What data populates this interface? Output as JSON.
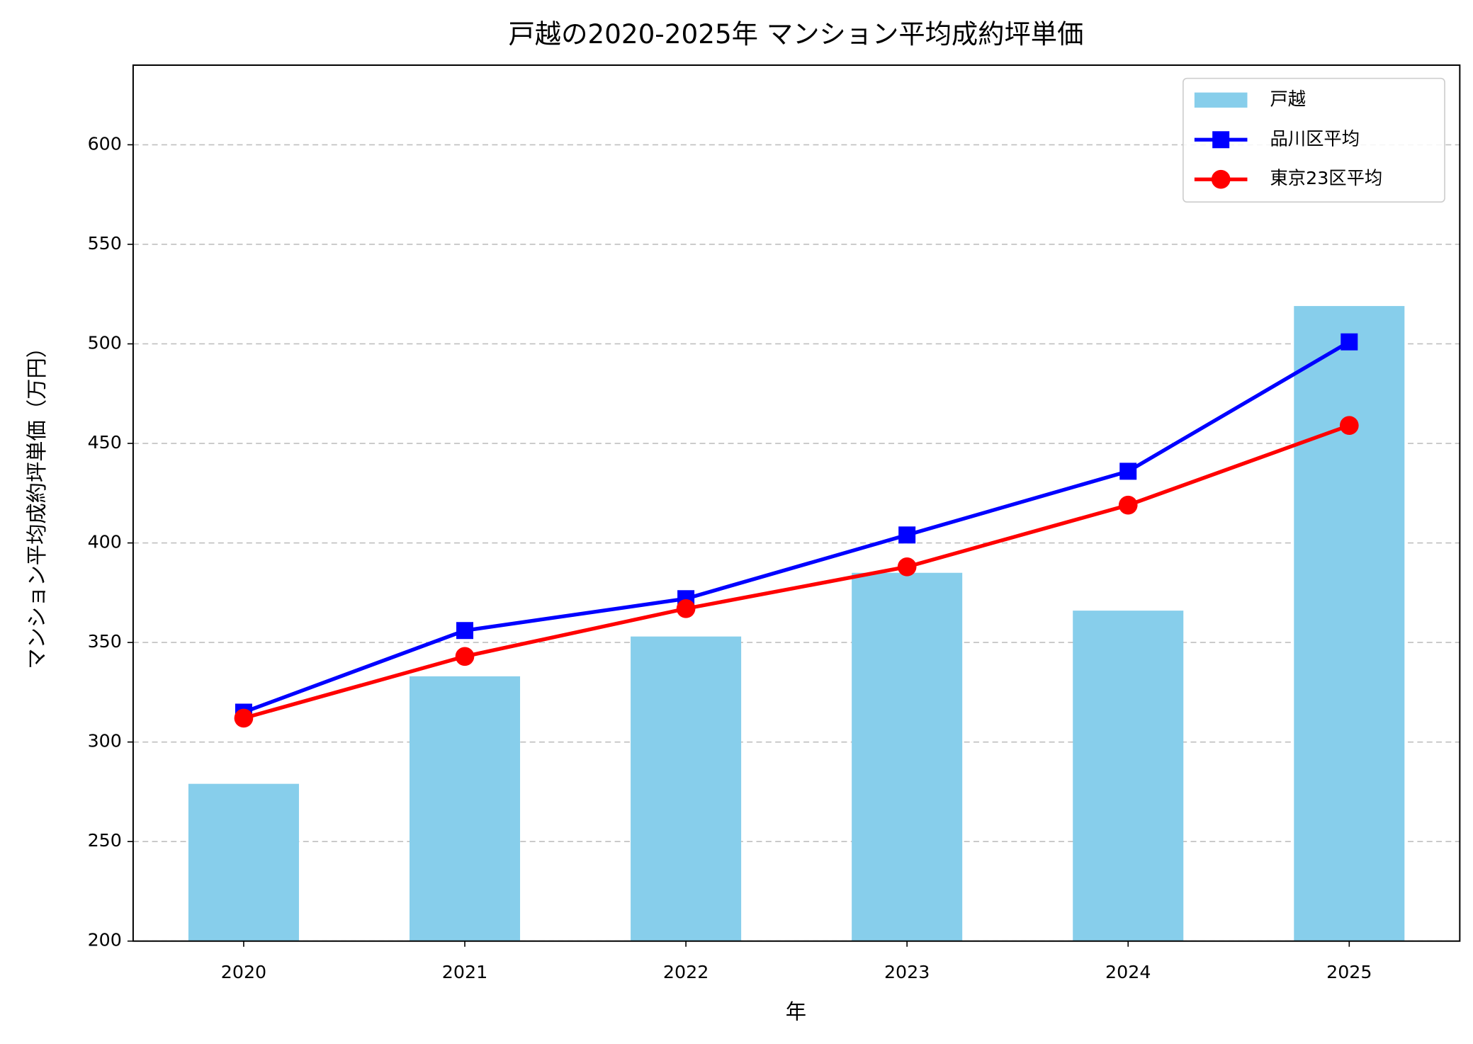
{
  "chart_data": {
    "type": "bar",
    "title": "戸越の2020-2025年 マンション平均成約坪単価",
    "x_label": "年",
    "y_label": "マンション平均成約坪単価（万円）",
    "categories": [
      "2020",
      "2021",
      "2022",
      "2023",
      "2024",
      "2025"
    ],
    "series": [
      {
        "name": "戸越",
        "type": "bar",
        "color": "#87ceeb",
        "values": [
          279,
          333,
          353,
          385,
          366,
          519
        ]
      },
      {
        "name": "品川区平均",
        "type": "line",
        "marker": "square",
        "color": "#0000ff",
        "values": [
          315,
          356,
          372,
          404,
          436,
          501
        ]
      },
      {
        "name": "東京23区平均",
        "type": "line",
        "marker": "circle",
        "color": "#ff0000",
        "values": [
          312,
          343,
          367,
          388,
          419,
          459
        ]
      }
    ],
    "ylim": [
      200,
      640
    ],
    "yticks": [
      200,
      250,
      300,
      350,
      400,
      450,
      500,
      550,
      600
    ],
    "grid": true,
    "legend": "upper right"
  }
}
